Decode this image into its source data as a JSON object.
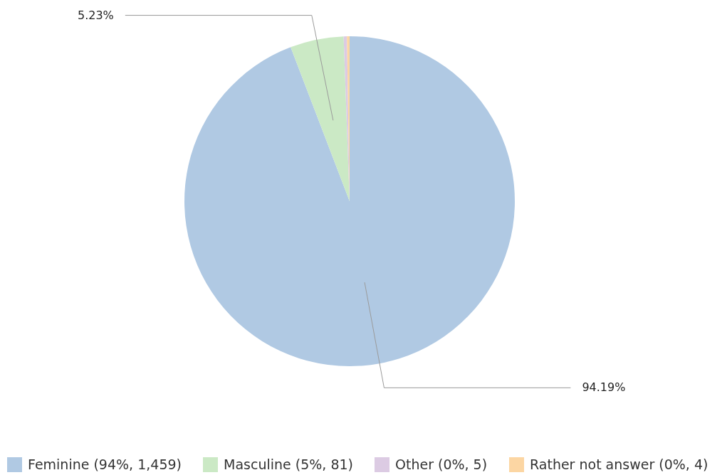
{
  "chart_data": {
    "type": "pie",
    "categories": [
      "Feminine (94%, 1,459)",
      "Masculine (5%, 81)",
      "Other (0%, 5)",
      "Rather not answer (0%, 4)"
    ],
    "values": [
      94.19,
      5.23,
      0.32,
      0.26
    ],
    "colors": [
      "#b0c9e3",
      "#cbe9c5",
      "#dccbe3",
      "#fcd6a3"
    ],
    "value_labels": [
      "94.19%",
      "5.23%",
      null,
      null
    ],
    "legend": "bottom"
  }
}
